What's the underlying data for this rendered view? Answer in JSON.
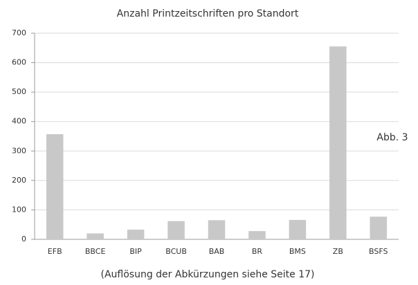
{
  "chart_data": {
    "type": "bar",
    "title": "Anzahl Printzeitschriften pro Standort",
    "categories": [
      "EFB",
      "BBCE",
      "BIP",
      "BCUB",
      "BAB",
      "BR",
      "BMS",
      "ZB",
      "BSFS"
    ],
    "values": [
      357,
      20,
      33,
      62,
      65,
      28,
      66,
      655,
      77
    ],
    "color": "#c8c8c8",
    "ylim": [
      0,
      700
    ],
    "yticks": [
      0,
      100,
      200,
      300,
      400,
      500,
      600,
      700
    ],
    "grid": true,
    "annotation": "Abb. 3",
    "caption": "(Auflösung der Abkürzungen siehe Seite 17)"
  }
}
